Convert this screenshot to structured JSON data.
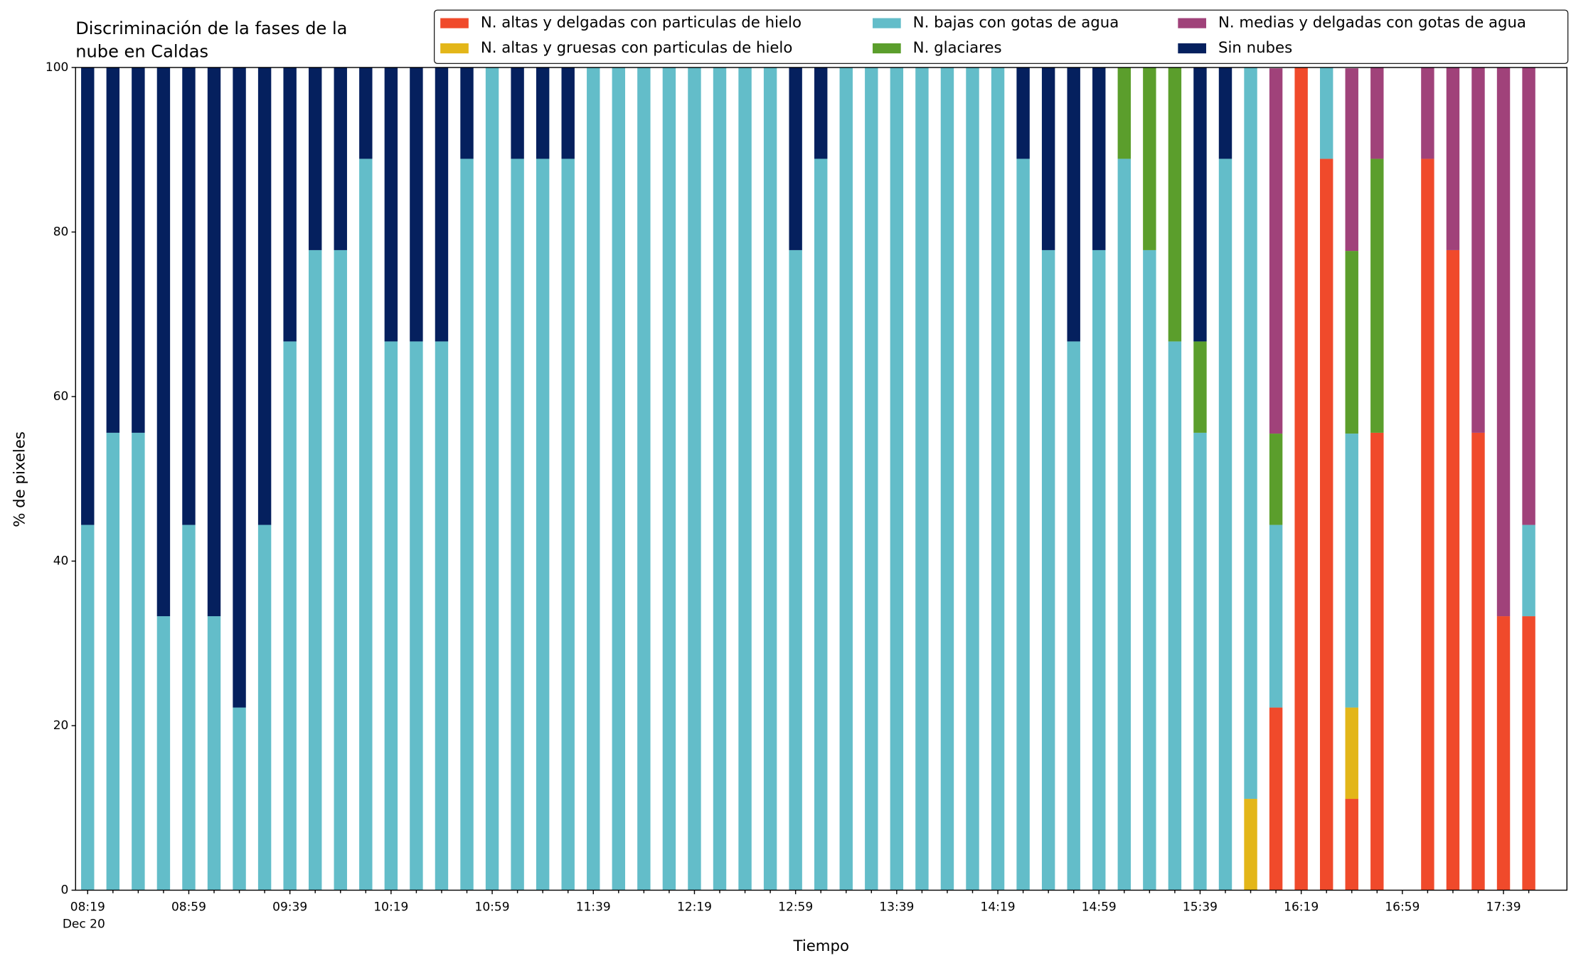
{
  "chart_data": {
    "type": "stacked_bar",
    "title": [
      "Discriminación de la fases de la",
      "nube en Caldas"
    ],
    "x_label": "Tiempo",
    "y_label": "% de pixeles",
    "date_label": "Dec 20",
    "categories": [
      "08:19",
      null,
      null,
      null,
      "08:59",
      null,
      null,
      null,
      "09:39",
      null,
      null,
      null,
      "10:19",
      null,
      null,
      null,
      "10:59",
      null,
      null,
      null,
      "11:39",
      null,
      null,
      null,
      "12:19",
      null,
      null,
      null,
      "12:59",
      null,
      null,
      null,
      "13:39",
      null,
      null,
      null,
      "14:19",
      null,
      null,
      null,
      "14:59",
      null,
      null,
      null,
      "15:39",
      null,
      null,
      null,
      "16:19",
      null,
      null,
      null,
      "16:59",
      null,
      null,
      null,
      "17:39",
      null
    ],
    "ylim": [
      0,
      100
    ],
    "yticks": [
      0,
      20,
      40,
      60,
      80,
      100
    ],
    "series": [
      {
        "name": "N. altas y delgadas con particulas de hielo",
        "color": "#f04a2b",
        "values": [
          0,
          0,
          0,
          0,
          0,
          0,
          0,
          0,
          0,
          0,
          0,
          0,
          0,
          0,
          0,
          0,
          0,
          0,
          0,
          0,
          0,
          0,
          0,
          0,
          0,
          0,
          0,
          0,
          0,
          0,
          0,
          0,
          0,
          0,
          0,
          0,
          0,
          0,
          0,
          0,
          0,
          0,
          0,
          0,
          0,
          0,
          0,
          22.2,
          100,
          88.9,
          11.1,
          55.6,
          0,
          88.9,
          77.8,
          55.6,
          33.3,
          33.3
        ]
      },
      {
        "name": "N. altas y gruesas con particulas de hielo",
        "color": "#e3b619",
        "values": [
          0,
          0,
          0,
          0,
          0,
          0,
          0,
          0,
          0,
          0,
          0,
          0,
          0,
          0,
          0,
          0,
          0,
          0,
          0,
          0,
          0,
          0,
          0,
          0,
          0,
          0,
          0,
          0,
          0,
          0,
          0,
          0,
          0,
          0,
          0,
          0,
          0,
          0,
          0,
          0,
          0,
          0,
          0,
          0,
          0,
          0,
          11.1,
          0,
          0,
          0,
          11.1,
          0,
          0,
          0,
          0,
          0,
          0,
          0
        ]
      },
      {
        "name": "N. bajas con gotas de agua",
        "color": "#63bdc9",
        "values": [
          44.4,
          55.6,
          55.6,
          33.3,
          44.4,
          33.3,
          22.2,
          44.4,
          66.7,
          77.8,
          77.8,
          88.9,
          66.7,
          66.7,
          66.7,
          88.9,
          100,
          88.9,
          88.9,
          88.9,
          100,
          100,
          100,
          100,
          100,
          100,
          100,
          100,
          77.8,
          88.9,
          100,
          100,
          100,
          100,
          100,
          100,
          100,
          88.9,
          77.8,
          66.7,
          77.8,
          88.9,
          77.8,
          66.7,
          55.6,
          88.9,
          88.9,
          22.2,
          0,
          11.1,
          33.3,
          0,
          0,
          0,
          0,
          0,
          0,
          11.1
        ]
      },
      {
        "name": "N. glaciares",
        "color": "#5b9e2c",
        "values": [
          0,
          0,
          0,
          0,
          0,
          0,
          0,
          0,
          0,
          0,
          0,
          0,
          0,
          0,
          0,
          0,
          0,
          0,
          0,
          0,
          0,
          0,
          0,
          0,
          0,
          0,
          0,
          0,
          0,
          0,
          0,
          0,
          0,
          0,
          0,
          0,
          0,
          0,
          0,
          0,
          0,
          11.1,
          22.2,
          33.3,
          11.1,
          0,
          0,
          11.1,
          0,
          0,
          22.2,
          33.3,
          0,
          0,
          0,
          0,
          0,
          0
        ]
      },
      {
        "name": "N. medias y delgadas con gotas de agua",
        "color": "#a0427a",
        "values": [
          0,
          0,
          0,
          0,
          0,
          0,
          0,
          0,
          0,
          0,
          0,
          0,
          0,
          0,
          0,
          0,
          0,
          0,
          0,
          0,
          0,
          0,
          0,
          0,
          0,
          0,
          0,
          0,
          0,
          0,
          0,
          0,
          0,
          0,
          0,
          0,
          0,
          0,
          0,
          0,
          0,
          0,
          0,
          0,
          0,
          0,
          0,
          44.4,
          0,
          0,
          22.2,
          11.1,
          0,
          11.1,
          22.2,
          44.4,
          66.7,
          55.6
        ]
      },
      {
        "name": "Sin nubes",
        "color": "#05205e",
        "values": [
          55.6,
          44.4,
          44.4,
          66.7,
          55.6,
          66.7,
          77.8,
          55.6,
          33.3,
          22.2,
          22.2,
          11.1,
          33.3,
          33.3,
          33.3,
          11.1,
          0,
          11.1,
          11.1,
          11.1,
          0,
          0,
          0,
          0,
          0,
          0,
          0,
          0,
          22.2,
          11.1,
          0,
          0,
          0,
          0,
          0,
          0,
          0,
          11.1,
          22.2,
          33.3,
          22.2,
          0,
          0,
          0,
          33.3,
          11.1,
          0,
          0,
          0,
          0,
          0,
          0,
          0,
          0,
          0,
          0,
          0,
          0
        ]
      }
    ]
  }
}
